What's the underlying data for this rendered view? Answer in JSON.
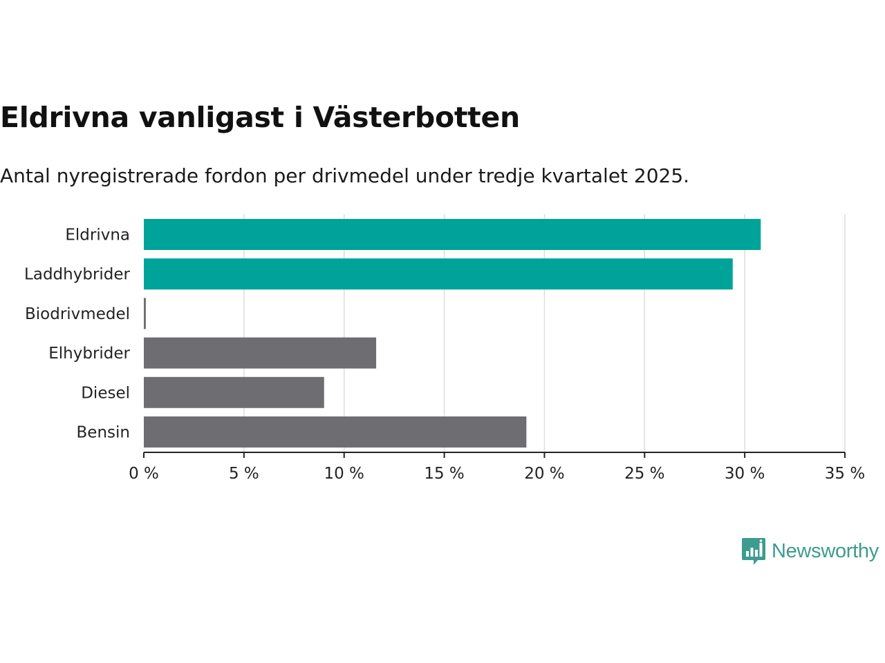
{
  "header": {
    "title": "Eldrivna vanligast i Västerbotten",
    "subtitle": "Antal nyregistrerade fordon per drivmedel under tredje kvartalet 2025."
  },
  "colors": {
    "highlight": "#00a399",
    "default": "#6e6d72",
    "grid": "#dcdcdc",
    "axis": "#222222",
    "text": "#222222",
    "brand": "#3d9b8f"
  },
  "logo": {
    "text": "Newsworthy",
    "icon": "bar-chart-speech-bubble-icon"
  },
  "chart_data": {
    "type": "bar",
    "orientation": "horizontal",
    "title": "Eldrivna vanligast i Västerbotten",
    "subtitle": "Antal nyregistrerade fordon per drivmedel under tredje kvartalet 2025.",
    "xlabel": "",
    "ylabel": "",
    "unit": "%",
    "categories": [
      "Eldrivna",
      "Laddhybrider",
      "Biodrivmedel",
      "Elhybrider",
      "Diesel",
      "Bensin"
    ],
    "values": [
      30.8,
      29.4,
      0.1,
      11.6,
      9.0,
      19.1
    ],
    "highlight": [
      true,
      true,
      false,
      false,
      false,
      false
    ],
    "xlim": [
      0,
      35
    ],
    "xticks": [
      0,
      5,
      10,
      15,
      20,
      25,
      30,
      35
    ],
    "xtick_labels": [
      "0 %",
      "5 %",
      "10 %",
      "15 %",
      "20 %",
      "25 %",
      "30 %",
      "35 %"
    ],
    "grid": true,
    "legend": "none"
  }
}
